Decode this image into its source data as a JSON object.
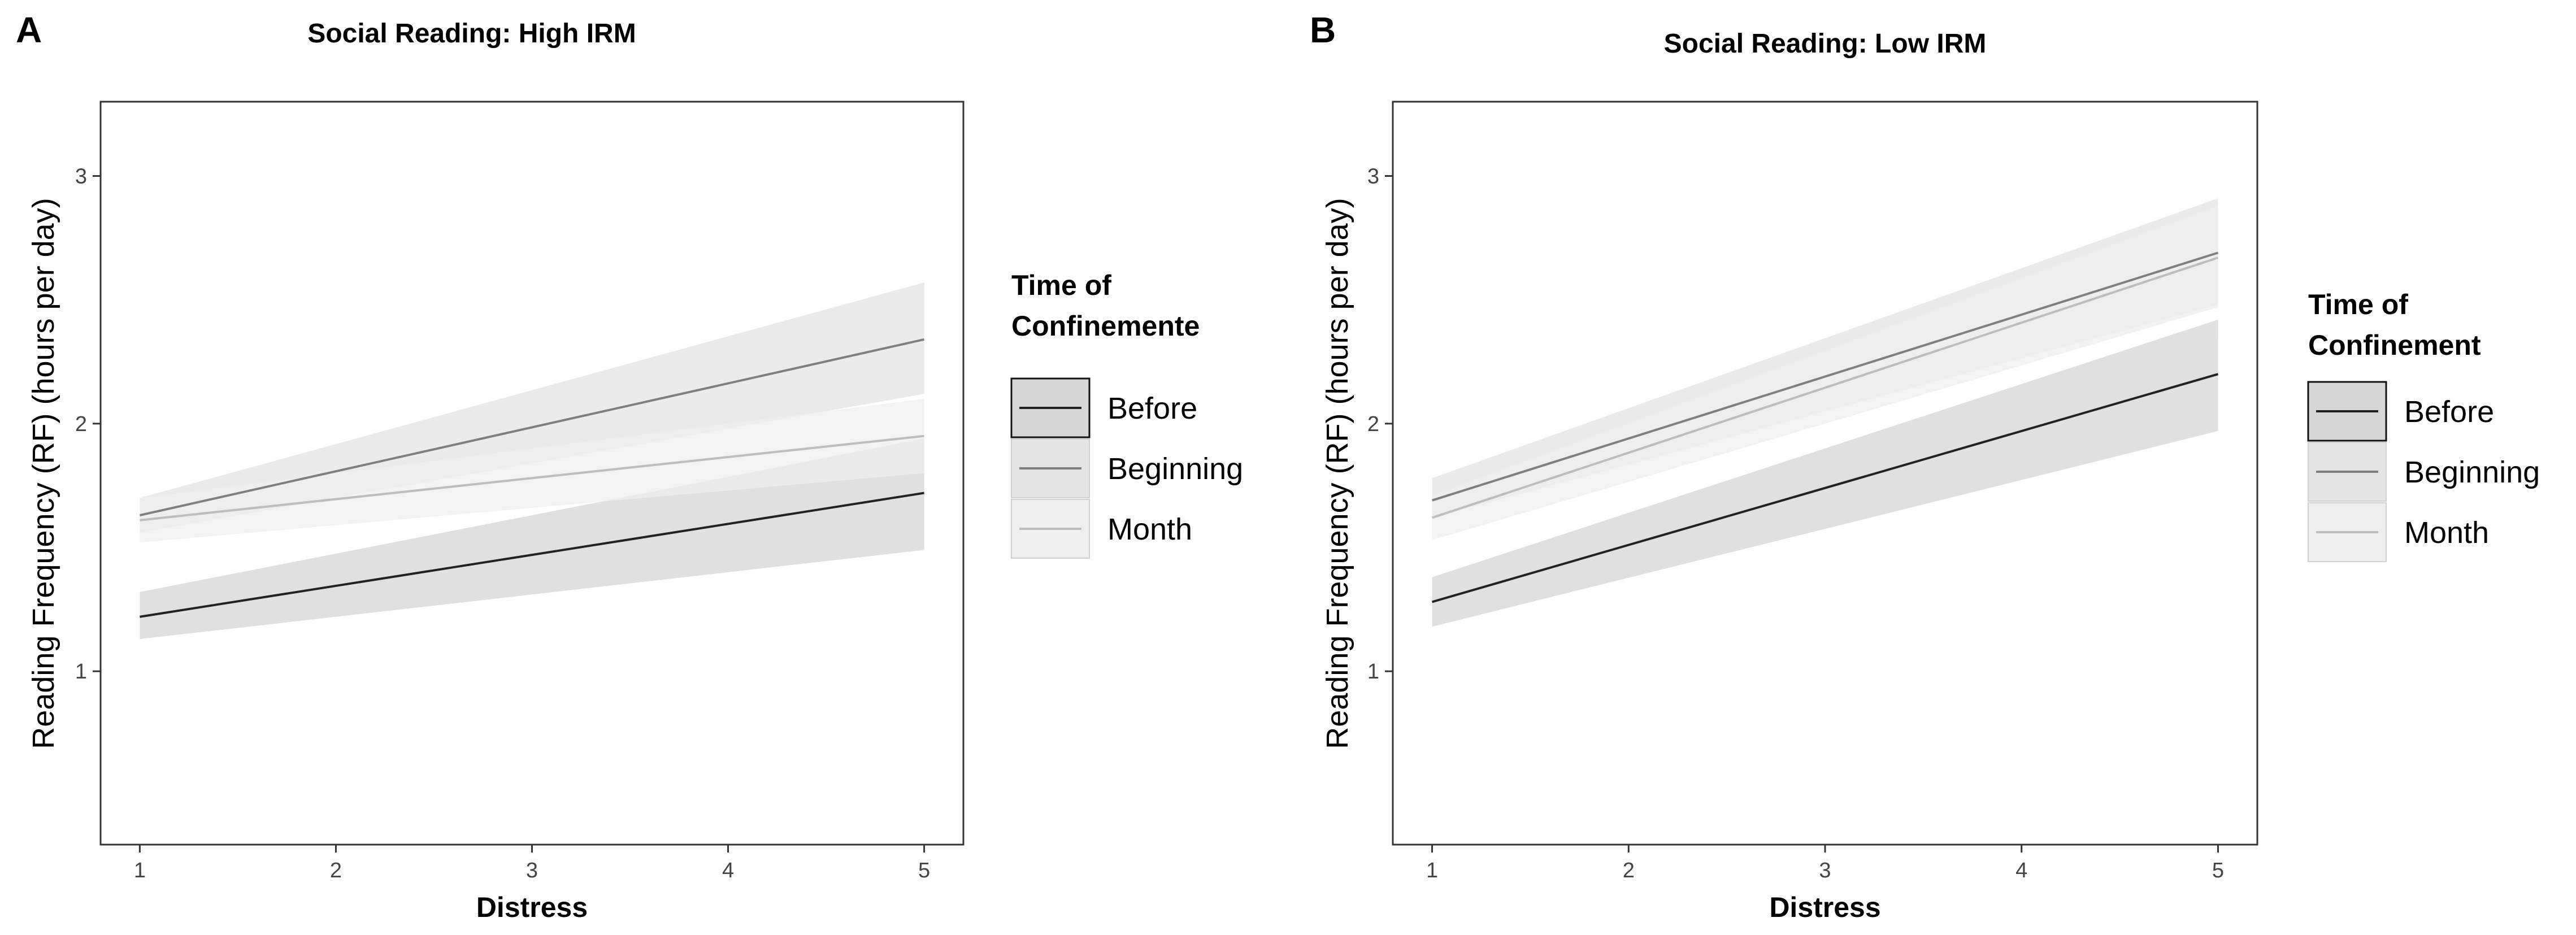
{
  "chart_data": [
    {
      "type": "line",
      "panel_label": "A",
      "title": "Social Reading: High IRM",
      "xlabel": "Distress",
      "ylabel": "Reading Frequency (RF) (hours per day)",
      "xlim": [
        0.8,
        5.2
      ],
      "ylim": [
        0.3,
        3.3
      ],
      "xticks": [
        1,
        2,
        3,
        4,
        5
      ],
      "yticks": [
        1,
        2,
        3
      ],
      "grid": false,
      "legend": {
        "title_lines": [
          "Time of",
          "Confinemente"
        ],
        "position": "right",
        "entries": [
          "Before",
          "Beginning",
          "Month"
        ]
      },
      "series": [
        {
          "name": "Before",
          "color": "#222222",
          "band": "#d6d6d6",
          "x": [
            1,
            5
          ],
          "y": [
            1.22,
            1.72
          ],
          "lower": [
            1.13,
            1.49
          ],
          "upper": [
            1.32,
            1.94
          ]
        },
        {
          "name": "Beginning",
          "color": "#7f7f7f",
          "band": "#e4e4e4",
          "x": [
            1,
            5
          ],
          "y": [
            1.63,
            2.34
          ],
          "lower": [
            1.56,
            2.12
          ],
          "upper": [
            1.7,
            2.57
          ]
        },
        {
          "name": "Month",
          "color": "#bdbdbd",
          "band": "#efefef",
          "x": [
            1,
            5
          ],
          "y": [
            1.61,
            1.95
          ],
          "lower": [
            1.52,
            1.8
          ],
          "upper": [
            1.7,
            2.1
          ]
        }
      ]
    },
    {
      "type": "line",
      "panel_label": "B",
      "title": "Social Reading: Low IRM",
      "xlabel": "Distress",
      "ylabel": "Reading Frequency (RF) (hours per day)",
      "xlim": [
        0.8,
        5.2
      ],
      "ylim": [
        0.3,
        3.3
      ],
      "xticks": [
        1,
        2,
        3,
        4,
        5
      ],
      "yticks": [
        1,
        2,
        3
      ],
      "grid": false,
      "legend": {
        "title_lines": [
          "Time of",
          "Confinement"
        ],
        "position": "right",
        "entries": [
          "Before",
          "Beginning",
          "Month"
        ]
      },
      "series": [
        {
          "name": "Before",
          "color": "#222222",
          "band": "#d6d6d6",
          "x": [
            1,
            5
          ],
          "y": [
            1.28,
            2.2
          ],
          "lower": [
            1.18,
            1.97
          ],
          "upper": [
            1.38,
            2.42
          ]
        },
        {
          "name": "Beginning",
          "color": "#7f7f7f",
          "band": "#e4e4e4",
          "x": [
            1,
            5
          ],
          "y": [
            1.69,
            2.69
          ],
          "lower": [
            1.62,
            2.48
          ],
          "upper": [
            1.78,
            2.91
          ]
        },
        {
          "name": "Month",
          "color": "#bdbdbd",
          "band": "#efefef",
          "x": [
            1,
            5
          ],
          "y": [
            1.62,
            2.67
          ],
          "lower": [
            1.53,
            2.47
          ],
          "upper": [
            1.71,
            2.88
          ]
        }
      ]
    }
  ]
}
